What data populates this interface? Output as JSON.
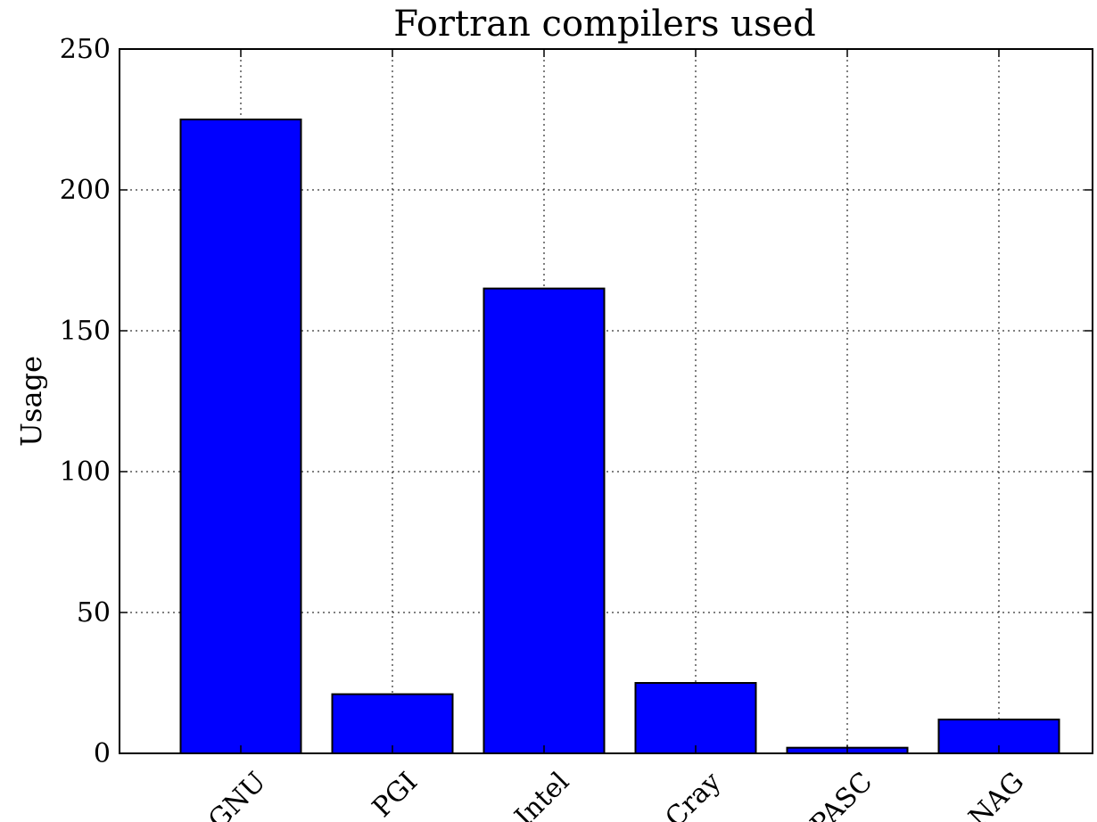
{
  "chart_data": {
    "type": "bar",
    "title": "Fortran compilers used",
    "xlabel": "",
    "ylabel": "Usage",
    "categories": [
      "GNU",
      "PGI",
      "Intel",
      "Cray",
      "PASC",
      "NAG"
    ],
    "values": [
      225,
      21,
      165,
      25,
      2,
      12
    ],
    "ylim": [
      0,
      250
    ],
    "yticks": [
      0,
      50,
      100,
      150,
      200,
      250
    ],
    "grid": true,
    "bar_color": "#0000ff",
    "bar_edge_color": "#000000"
  }
}
